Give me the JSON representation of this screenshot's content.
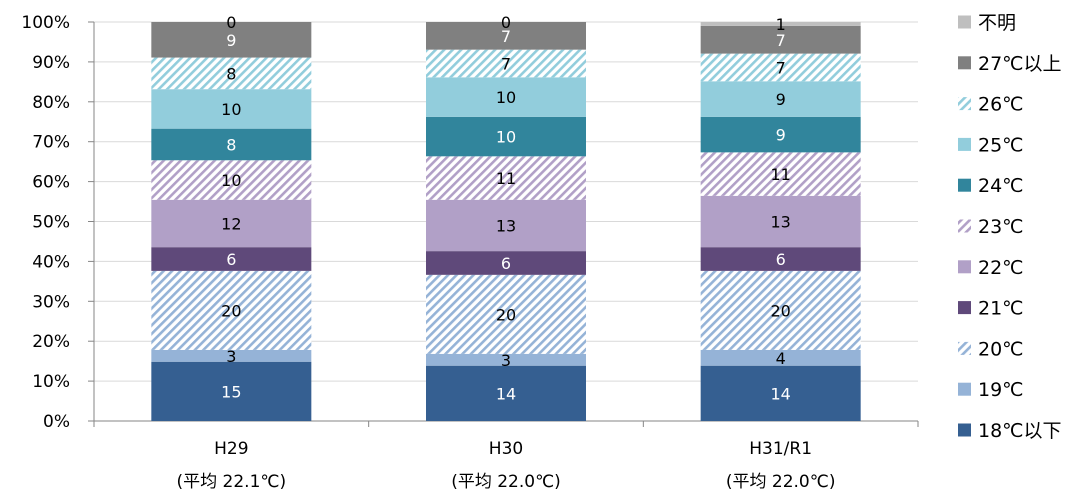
{
  "chart_data": {
    "type": "bar",
    "stacked": "percent",
    "categories": [
      "H29",
      "H30",
      "H31/R1"
    ],
    "category_sublabels": [
      "(平均 22.1℃)",
      "(平均 22.0℃)",
      "(平均 22.0℃)"
    ],
    "ylim": [
      0,
      100
    ],
    "yticks": [
      "0%",
      "10%",
      "20%",
      "30%",
      "40%",
      "50%",
      "60%",
      "70%",
      "80%",
      "90%",
      "100%"
    ],
    "grid": true,
    "legend_position": "right",
    "series": [
      {
        "name": "18℃以下",
        "values": [
          15,
          14,
          14
        ],
        "color": "#355f91",
        "pattern": "solid",
        "label_color": "#ffffff"
      },
      {
        "name": "19℃",
        "values": [
          3,
          3,
          4
        ],
        "color": "#95b3d7",
        "pattern": "solid",
        "label_color": "#000000"
      },
      {
        "name": "20℃",
        "values": [
          20,
          20,
          20
        ],
        "color": "#95b3d7",
        "pattern": "hatch",
        "label_color": "#000000"
      },
      {
        "name": "21℃",
        "values": [
          6,
          6,
          6
        ],
        "color": "#5f497a",
        "pattern": "solid",
        "label_color": "#ffffff"
      },
      {
        "name": "22℃",
        "values": [
          12,
          13,
          13
        ],
        "color": "#b1a0c7",
        "pattern": "solid",
        "label_color": "#000000"
      },
      {
        "name": "23℃",
        "values": [
          10,
          11,
          11
        ],
        "color": "#b1a0c7",
        "pattern": "hatch",
        "label_color": "#000000"
      },
      {
        "name": "24℃",
        "values": [
          8,
          10,
          9
        ],
        "color": "#31859c",
        "pattern": "solid",
        "label_color": "#ffffff"
      },
      {
        "name": "25℃",
        "values": [
          10,
          10,
          9
        ],
        "color": "#92cddc",
        "pattern": "solid",
        "label_color": "#000000"
      },
      {
        "name": "26℃",
        "values": [
          8,
          7,
          7
        ],
        "color": "#92cddc",
        "pattern": "hatch",
        "label_color": "#000000"
      },
      {
        "name": "27℃以上",
        "values": [
          9,
          7,
          7
        ],
        "color": "#808080",
        "pattern": "solid",
        "label_color": "#ffffff"
      },
      {
        "name": "不明",
        "values": [
          0,
          0,
          1
        ],
        "color": "#bfbfbf",
        "pattern": "solid",
        "label_color": "#000000"
      }
    ]
  }
}
